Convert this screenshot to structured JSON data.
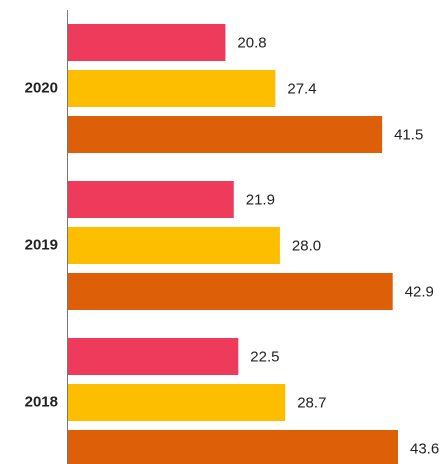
{
  "chart_data": {
    "type": "bar",
    "orientation": "horizontal",
    "categories": [
      "2020",
      "2019",
      "2018"
    ],
    "series": [
      {
        "color": "#ee3a5b",
        "values": [
          20.8,
          21.9,
          22.5
        ]
      },
      {
        "color": "#fdbe00",
        "values": [
          27.4,
          28,
          28.7
        ],
        "value_labels": [
          "27.4",
          "28.0",
          "28.7"
        ]
      },
      {
        "color": "#dd5f07",
        "values": [
          41.5,
          42.9,
          43.6
        ]
      }
    ]
  }
}
